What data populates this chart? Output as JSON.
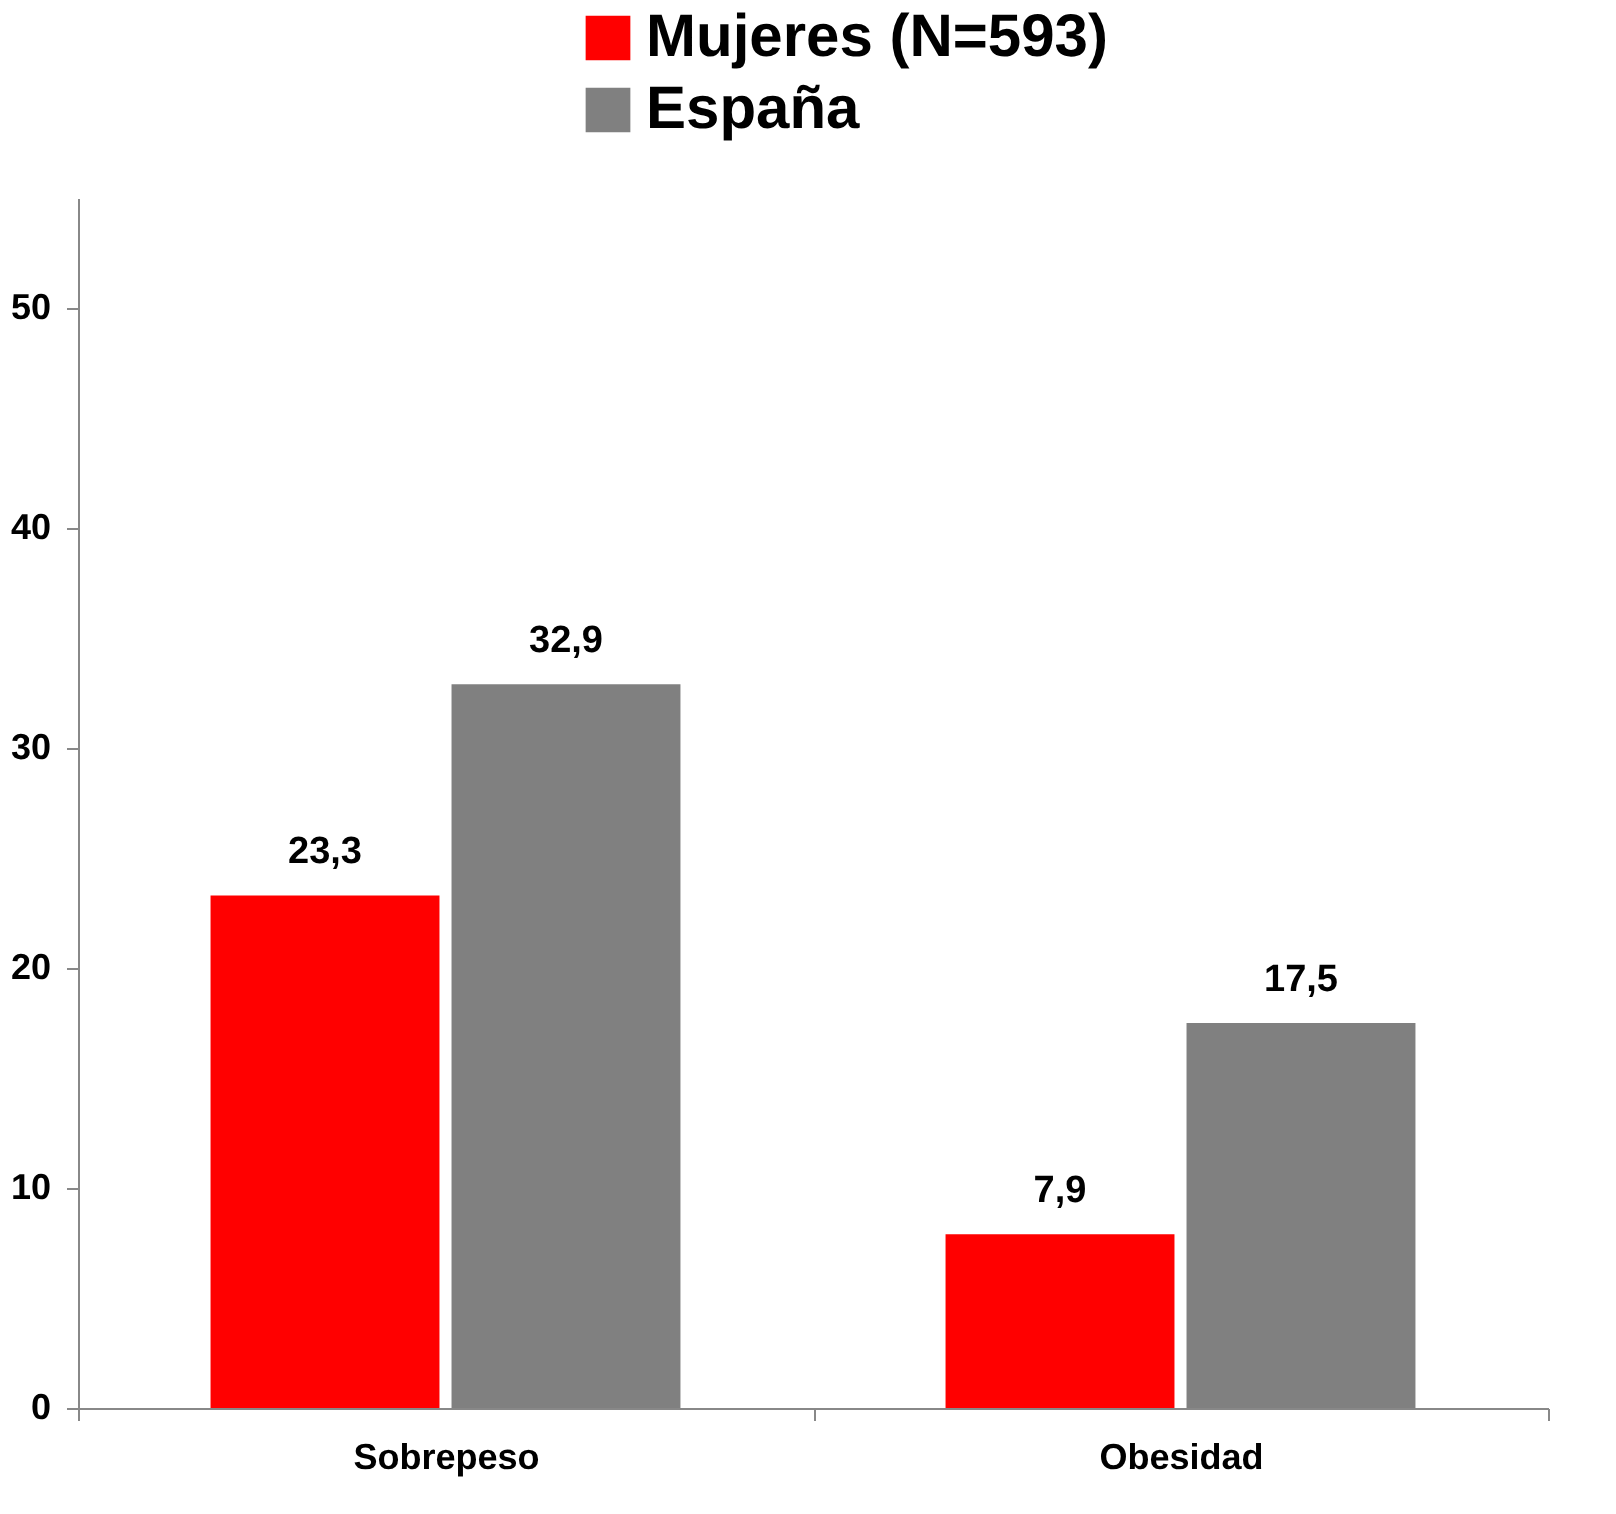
{
  "chart_data": {
    "type": "bar",
    "categories": [
      "Sobrepeso",
      "Obesidad"
    ],
    "series": [
      {
        "name": "Mujeres (N=593)",
        "color": "#ff0000",
        "values": [
          23.3,
          7.9
        ],
        "value_labels": [
          "23,3",
          "7,9"
        ]
      },
      {
        "name": "España",
        "color": "#808080",
        "values": [
          32.9,
          17.5
        ],
        "value_labels": [
          "32,9",
          "17,5"
        ]
      }
    ],
    "ylim": [
      0,
      55
    ],
    "yticks": [
      0,
      10,
      20,
      30,
      40,
      50
    ],
    "grid": false,
    "legend": "top right"
  }
}
